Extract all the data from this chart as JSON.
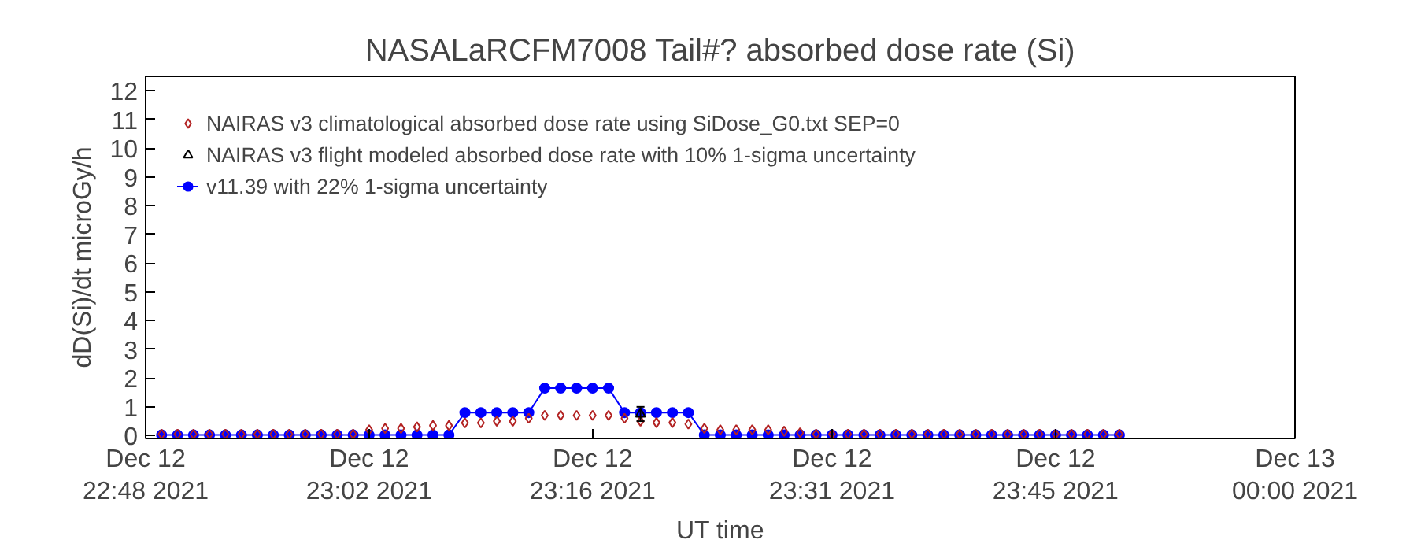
{
  "chart_data": {
    "type": "scatter",
    "title": "NASALaRCFM7008 Tail#? absorbed dose rate (Si)",
    "xlabel": "UT time",
    "ylabel": "dD(Si)/dt microGy/h",
    "x": [
      "2021-12-12T22:49",
      "2021-12-12T22:50",
      "2021-12-12T22:51",
      "2021-12-12T22:52",
      "2021-12-12T22:53",
      "2021-12-12T22:54",
      "2021-12-12T22:55",
      "2021-12-12T22:56",
      "2021-12-12T22:57",
      "2021-12-12T22:58",
      "2021-12-12T22:59",
      "2021-12-12T23:00",
      "2021-12-12T23:01",
      "2021-12-12T23:02",
      "2021-12-12T23:03",
      "2021-12-12T23:04",
      "2021-12-12T23:05",
      "2021-12-12T23:06",
      "2021-12-12T23:07",
      "2021-12-12T23:08",
      "2021-12-12T23:09",
      "2021-12-12T23:10",
      "2021-12-12T23:11",
      "2021-12-12T23:12",
      "2021-12-12T23:13",
      "2021-12-12T23:14",
      "2021-12-12T23:15",
      "2021-12-12T23:16",
      "2021-12-12T23:17",
      "2021-12-12T23:18",
      "2021-12-12T23:19",
      "2021-12-12T23:20",
      "2021-12-12T23:21",
      "2021-12-12T23:22",
      "2021-12-12T23:23",
      "2021-12-12T23:24",
      "2021-12-12T23:25",
      "2021-12-12T23:26",
      "2021-12-12T23:27",
      "2021-12-12T23:28",
      "2021-12-12T23:29",
      "2021-12-12T23:30",
      "2021-12-12T23:31",
      "2021-12-12T23:32",
      "2021-12-12T23:33",
      "2021-12-12T23:34",
      "2021-12-12T23:35",
      "2021-12-12T23:36",
      "2021-12-12T23:37",
      "2021-12-12T23:38",
      "2021-12-12T23:39",
      "2021-12-12T23:40",
      "2021-12-12T23:41",
      "2021-12-12T23:42",
      "2021-12-12T23:43",
      "2021-12-12T23:44",
      "2021-12-12T23:45",
      "2021-12-12T23:46",
      "2021-12-12T23:47",
      "2021-12-12T23:48",
      "2021-12-12T23:49"
    ],
    "series": [
      {
        "name": "NAIRAS v3 climatological absorbed dose rate using SiDose_G0.txt SEP=0",
        "color": "#b22222",
        "marker": "diamond",
        "values": [
          0.05,
          0.05,
          0.05,
          0.05,
          0.05,
          0.05,
          0.05,
          0.05,
          0.05,
          0.05,
          0.05,
          0.05,
          0.05,
          0.2,
          0.25,
          0.25,
          0.3,
          0.35,
          0.35,
          0.44,
          0.44,
          0.5,
          0.5,
          0.6,
          0.7,
          0.7,
          0.7,
          0.7,
          0.7,
          0.6,
          0.5,
          0.45,
          0.45,
          0.4,
          0.25,
          0.2,
          0.2,
          0.2,
          0.2,
          0.15,
          0.1,
          0.05,
          0.05,
          0.05,
          0.05,
          0.05,
          0.05,
          0.05,
          0.05,
          0.05,
          0.05,
          0.05,
          0.05,
          0.05,
          0.05,
          0.05,
          0.05,
          0.05,
          0.05,
          0.05,
          0.05
        ]
      },
      {
        "name": "NAIRAS v3 flight modeled absorbed dose rate with 10% 1-sigma uncertainty",
        "color": "#000000",
        "marker": "triangle",
        "values": [
          null,
          null,
          null,
          null,
          null,
          null,
          null,
          null,
          null,
          null,
          null,
          null,
          null,
          null,
          null,
          null,
          null,
          null,
          null,
          null,
          null,
          null,
          null,
          null,
          null,
          null,
          null,
          null,
          null,
          null,
          0.75,
          null,
          null,
          null,
          null,
          null,
          null,
          null,
          null,
          null,
          null,
          null,
          null,
          null,
          null,
          null,
          null,
          null,
          null,
          null,
          null,
          null,
          null,
          null,
          null,
          null,
          null,
          null,
          null,
          null,
          null
        ],
        "errors": [
          null,
          null,
          null,
          null,
          null,
          null,
          null,
          null,
          null,
          null,
          null,
          null,
          null,
          null,
          null,
          null,
          null,
          null,
          null,
          null,
          null,
          null,
          null,
          null,
          null,
          null,
          null,
          null,
          null,
          null,
          0.25,
          null,
          null,
          null,
          null,
          null,
          null,
          null,
          null,
          null,
          null,
          null,
          null,
          null,
          null,
          null,
          null,
          null,
          null,
          null,
          null,
          null,
          null,
          null,
          null,
          null,
          null,
          null,
          null,
          null,
          null
        ]
      },
      {
        "name": "v11.39 with 22% 1-sigma uncertainty",
        "color": "#0000ff",
        "marker": "circle",
        "type": "line",
        "values": [
          0.02,
          0.02,
          0.02,
          0.02,
          0.02,
          0.02,
          0.02,
          0.02,
          0.02,
          0.02,
          0.02,
          0.02,
          0.02,
          0.02,
          0.02,
          0.02,
          0.02,
          0.02,
          0.02,
          0.8,
          0.8,
          0.8,
          0.8,
          0.8,
          1.65,
          1.65,
          1.65,
          1.65,
          1.65,
          0.8,
          0.8,
          0.8,
          0.8,
          0.8,
          0.02,
          0.02,
          0.02,
          0.02,
          0.02,
          0.02,
          0.02,
          0.02,
          0.02,
          0.02,
          0.02,
          0.02,
          0.02,
          0.02,
          0.02,
          0.02,
          0.02,
          0.02,
          0.02,
          0.02,
          0.02,
          0.02,
          0.02,
          0.02,
          0.02,
          0.02,
          0.02
        ]
      }
    ],
    "xlim": [
      "2021-12-12T22:48",
      "2021-12-13T00:00"
    ],
    "xticks": [
      {
        "value": "2021-12-12T22:48",
        "label": "Dec 12\n22:48 2021"
      },
      {
        "value": "2021-12-12T23:02",
        "label": "Dec 12\n23:02 2021"
      },
      {
        "value": "2021-12-12T23:16",
        "label": "Dec 12\n23:16 2021"
      },
      {
        "value": "2021-12-12T23:31",
        "label": "Dec 12\n23:31 2021"
      },
      {
        "value": "2021-12-12T23:45",
        "label": "Dec 12\n23:45 2021"
      },
      {
        "value": "2021-12-13T00:00",
        "label": "Dec 13\n00:00 2021"
      }
    ],
    "ylim": [
      -0.1,
      12.5
    ],
    "yticks": [
      0,
      1,
      2,
      3,
      4,
      5,
      6,
      7,
      8,
      9,
      10,
      11,
      12
    ],
    "grid": false,
    "legend": "top left",
    "line_style": "solid"
  }
}
